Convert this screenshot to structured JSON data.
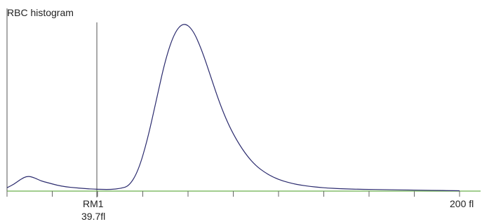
{
  "chart_data": {
    "type": "line",
    "title": "RBC histogram",
    "xlabel": "",
    "ylabel": "",
    "x_unit": "fl",
    "xlim": [
      0,
      200
    ],
    "ylim": [
      0,
      100
    ],
    "x_max_label": "200 fl",
    "marker": {
      "name": "RM1",
      "value_label": "39.7fl",
      "x": 39.7
    },
    "curve_color": "#2b2b6e",
    "baseline_color": "#6ab04c",
    "series": [
      {
        "x": [
          0,
          3,
          6,
          9,
          12,
          15,
          18,
          22,
          26,
          30,
          34,
          38,
          42,
          46,
          50,
          54,
          58,
          62,
          66,
          70,
          74,
          78,
          82,
          86,
          90,
          94,
          98,
          102,
          106,
          110,
          114,
          118,
          122,
          126,
          130,
          134,
          138,
          142,
          146,
          150,
          155,
          160,
          165,
          170,
          175,
          180,
          185,
          190,
          195,
          200
        ],
        "y": [
          2,
          4,
          7,
          9,
          8,
          6,
          5,
          3.5,
          2.5,
          2,
          1.5,
          1.2,
          1,
          1,
          1.5,
          3,
          12,
          30,
          54,
          78,
          94,
          100,
          96,
          84,
          68,
          52,
          39,
          29,
          21,
          15,
          11,
          8,
          6,
          4.5,
          3.5,
          2.8,
          2.2,
          1.8,
          1.5,
          1.3,
          1.1,
          1,
          0.9,
          0.8,
          0.7,
          0.6,
          0.5,
          0.4,
          0.3,
          0.2
        ]
      }
    ]
  }
}
